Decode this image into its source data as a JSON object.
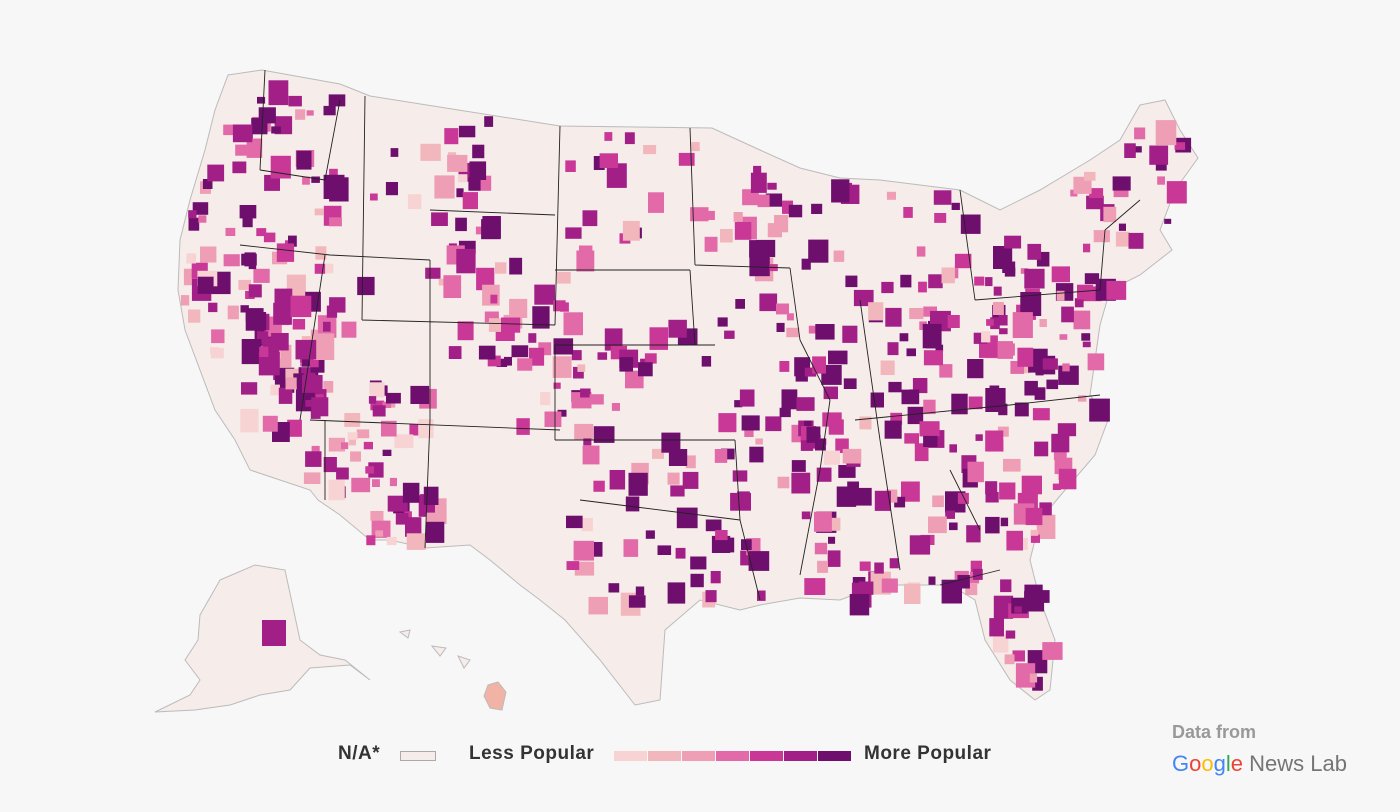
{
  "legend": {
    "na_label": "N/A*",
    "less_label": "Less Popular",
    "more_label": "More Popular",
    "scale_colors": [
      "#f7d3d3",
      "#f2b7bc",
      "#ee9fb5",
      "#e26aa8",
      "#c93797",
      "#a11f86",
      "#6e0f6e"
    ],
    "na_color": "#f6ece9"
  },
  "credit": {
    "from_label": "Data from",
    "brand_letters": [
      {
        "ch": "G",
        "color": "#4285F4"
      },
      {
        "ch": "o",
        "color": "#EA4335"
      },
      {
        "ch": "o",
        "color": "#FBBC05"
      },
      {
        "ch": "g",
        "color": "#4285F4"
      },
      {
        "ch": "l",
        "color": "#34A853"
      },
      {
        "ch": "e",
        "color": "#EA4335"
      }
    ],
    "brand_suffix": "News Lab"
  }
}
